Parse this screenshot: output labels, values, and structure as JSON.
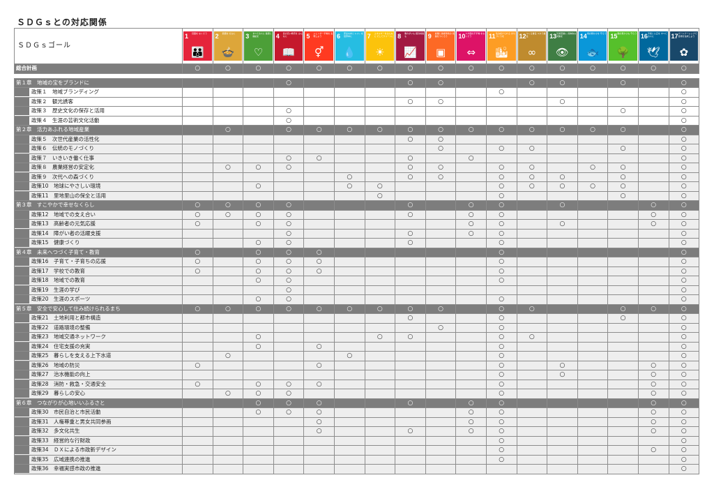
{
  "title": "ＳＤＧｓとの対応関係",
  "header_label": "ＳＤＧｓゴール",
  "mark": "○",
  "goals": [
    {
      "n": "1",
      "caption": "貧困を なくそう",
      "icon": "👪",
      "color": "#e5243b"
    },
    {
      "n": "2",
      "caption": "飢餓を ゼロに",
      "icon": "🍲",
      "color": "#dda63a"
    },
    {
      "n": "3",
      "caption": "すべての人に 健康と福祉を",
      "icon": "♡",
      "color": "#4c9f38"
    },
    {
      "n": "4",
      "caption": "質の高い教育を みんなに",
      "icon": "📖",
      "color": "#c5192d"
    },
    {
      "n": "5",
      "caption": "ジェンダー平等を 実現しよう",
      "icon": "⚥",
      "color": "#ff3a21"
    },
    {
      "n": "6",
      "caption": "安全な水とトイレ を世界中に",
      "icon": "💧",
      "color": "#26bde2"
    },
    {
      "n": "7",
      "caption": "エネルギーをみんなに そしてクリーンに",
      "icon": "☀",
      "color": "#fcc30b"
    },
    {
      "n": "8",
      "caption": "働きがいも 経済成長も",
      "icon": "📈",
      "color": "#a21942"
    },
    {
      "n": "9",
      "caption": "産業と技術革新の 基盤をつくろう",
      "icon": "▣",
      "color": "#fd6925"
    },
    {
      "n": "10",
      "caption": "人や国の不平等 をなくそう",
      "icon": "⇔",
      "color": "#dd1367"
    },
    {
      "n": "11",
      "caption": "住み続けられる まちづくりを",
      "icon": "🏙",
      "color": "#fd9d24"
    },
    {
      "n": "12",
      "caption": "つくる責任 つかう責任",
      "icon": "∞",
      "color": "#bf8b2e"
    },
    {
      "n": "13",
      "caption": "気候変動に 具体的な対策を",
      "icon": "👁",
      "color": "#3f7e44"
    },
    {
      "n": "14",
      "caption": "海の豊かさを 守ろう",
      "icon": "🐟",
      "color": "#0a97d9"
    },
    {
      "n": "15",
      "caption": "陸の豊かさも 守ろう",
      "icon": "🌳",
      "color": "#56c02b"
    },
    {
      "n": "16",
      "caption": "平和と公正を すべての人に",
      "icon": "🕊",
      "color": "#00689d"
    },
    {
      "n": "17",
      "caption": "パートナーシップで 目標を達成しよう",
      "icon": "✿",
      "color": "#19486a"
    }
  ],
  "rows": [
    {
      "type": "total",
      "label": "総合計画",
      "marks": "11111111111111111"
    },
    {
      "type": "spacer"
    },
    {
      "type": "chapter",
      "label": "第１章　地域の宝をブランドに",
      "marks": "00010001100110101"
    },
    {
      "type": "policy",
      "label": "政策１　地域ブランディング",
      "marks": "00000000001000001"
    },
    {
      "type": "policy",
      "label": "政策２　観光誘客",
      "marks": "00000001100010001"
    },
    {
      "type": "policy",
      "label": "政策３　歴史文化の保存と活用",
      "marks": "00010000000000101"
    },
    {
      "type": "policy",
      "label": "政策４　生涯の芸術文化活動",
      "marks": "00010000000000001"
    },
    {
      "type": "chapter",
      "label": "第２章　活力あふれる地域産業",
      "marks": "01011111111111101"
    },
    {
      "type": "policy",
      "label": "政策５　次世代産業の活性化",
      "marks": "00000001100000001"
    },
    {
      "type": "policy",
      "label": "政策６　伝統のモノづくり",
      "marks": "00000000101100101"
    },
    {
      "type": "policy",
      "label": "政策７　いきいき働く仕事",
      "marks": "00011001010000001"
    },
    {
      "type": "policy",
      "label": "政策８　農業経営の安定化",
      "marks": "01110001101101101"
    },
    {
      "type": "policy",
      "label": "政策９　次代への森づくり",
      "marks": "00000101101110101"
    },
    {
      "type": "policy",
      "label": "政策10　地球にやさしい環境",
      "marks": "00100110001111101"
    },
    {
      "type": "policy",
      "label": "政策11　里地里山の保全と活用",
      "marks": "00000010001000101"
    },
    {
      "type": "chapter",
      "label": "第３章　すこやかで幸せなくらし",
      "marks": "11110001011010011"
    },
    {
      "type": "policy",
      "label": "政策12　地域での支え合い",
      "marks": "11110001011000011"
    },
    {
      "type": "policy",
      "label": "政策13　高齢者の元気応援",
      "marks": "10110000011010011"
    },
    {
      "type": "policy",
      "label": "政策14　障がい者の活躍支援",
      "marks": "00010001011000001"
    },
    {
      "type": "policy",
      "label": "政策15　健康づくり",
      "marks": "00110001001000001"
    },
    {
      "type": "chapter",
      "label": "第４章　未来へつづく子育て・教育",
      "marks": "10111000001000001"
    },
    {
      "type": "policy",
      "label": "政策16　子育て・子育ちの応援",
      "marks": "10111000001000001"
    },
    {
      "type": "policy",
      "label": "政策17　学校での教育",
      "marks": "10111000001000001"
    },
    {
      "type": "policy",
      "label": "政策18　地域での教育",
      "marks": "00110000001000001"
    },
    {
      "type": "policy",
      "label": "政策19　生涯の学び",
      "marks": "00010000000000001"
    },
    {
      "type": "policy",
      "label": "政策20　生涯のスポーツ",
      "marks": "00110000001000001"
    },
    {
      "type": "chapter",
      "label": "第５章　安全で安心して住み続けられるまち",
      "marks": "11111111101100111"
    },
    {
      "type": "policy",
      "label": "政策21　土地利用と都市構造",
      "marks": "00000001001000101"
    },
    {
      "type": "policy",
      "label": "政策22　道路環境の整備",
      "marks": "00000000101000001"
    },
    {
      "type": "policy",
      "label": "政策23　地域交通ネットワーク",
      "marks": "00100011001100001"
    },
    {
      "type": "policy",
      "label": "政策24　住宅支援の充実",
      "marks": "00101000001000001"
    },
    {
      "type": "policy",
      "label": "政策25　暮らしを支える上下水道",
      "marks": "01000100001000001"
    },
    {
      "type": "policy",
      "label": "政策26　地域の防災",
      "marks": "10001000001010011"
    },
    {
      "type": "policy",
      "label": "政策27　治水機能の向上",
      "marks": "00000000001010011"
    },
    {
      "type": "policy",
      "label": "政策28　消防・救急・交通安全",
      "marks": "10111000001000011"
    },
    {
      "type": "policy",
      "label": "政策29　暮らしの安心",
      "marks": "01110000001000011"
    },
    {
      "type": "chapter",
      "label": "第６章　つながりが心地いいふるさと",
      "marks": "00111001011000011"
    },
    {
      "type": "policy",
      "label": "政策30　市民自治と市民活動",
      "marks": "00111000011000011"
    },
    {
      "type": "policy",
      "label": "政策31　人権尊重と男女共同参画",
      "marks": "00001000011000011"
    },
    {
      "type": "policy",
      "label": "政策32　多文化共生",
      "marks": "00001001011000011"
    },
    {
      "type": "policy",
      "label": "政策33　経営的な行財政",
      "marks": "00000000001000001"
    },
    {
      "type": "policy",
      "label": "政策34　ＤＸによる市政新デザイン",
      "marks": "00000000001000011"
    },
    {
      "type": "policy",
      "label": "政策35　広域連携の推進",
      "marks": "00000000001000001"
    },
    {
      "type": "policy",
      "label": "政策36　幸福実感市政の推進",
      "marks": "00000000000000001"
    }
  ]
}
